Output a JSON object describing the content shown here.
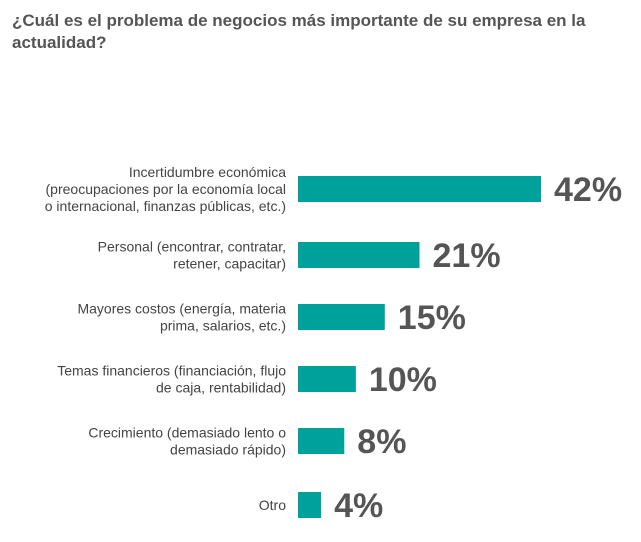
{
  "chart_data": {
    "type": "bar",
    "orientation": "horizontal",
    "title": "¿Cuál es el problema de negocios más importante de su empresa en la actualidad?",
    "categories": [
      [
        "Incertidumbre económica",
        "(preocupaciones por la economía local",
        "o internacional, finanzas públicas, etc.)"
      ],
      [
        "Personal (encontrar, contratar,",
        "retener, capacitar)"
      ],
      [
        "Mayores costos (energía, materia",
        "prima, salarios, etc.)"
      ],
      [
        "Temas financieros (financiación, flujo",
        "de caja, rentabilidad)"
      ],
      [
        "Crecimiento (demasiado lento o",
        "demasiado rápido)"
      ],
      [
        "Otro"
      ]
    ],
    "values": [
      42,
      21,
      15,
      10,
      8,
      4
    ],
    "value_labels": [
      "42%",
      "21%",
      "15%",
      "10%",
      "8%",
      "4%"
    ],
    "unit": "%",
    "bar_color": "#00A19A",
    "grid": false,
    "legend": "none"
  }
}
